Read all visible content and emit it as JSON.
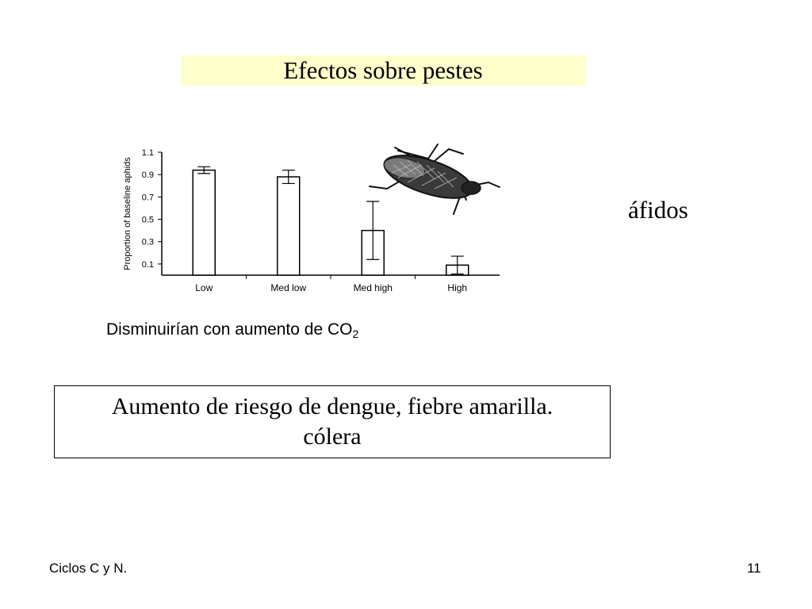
{
  "slide": {
    "title": "Efectos sobre pestes",
    "insect_label": "áfidos",
    "caption_main": "Disminuirían con aumento de CO",
    "caption_sub": "2",
    "risk_text_line1": "Aumento de riesgo de dengue, fiebre amarilla.",
    "risk_text_line2": "cólera",
    "footer_left": "Ciclos C y N.",
    "page_number": "11"
  },
  "colors": {
    "title_band": "#ffffcc",
    "bar_outline": "#000000",
    "axis": "#000000"
  },
  "icons": {
    "insect": "aphid-icon"
  },
  "chart_data": {
    "type": "bar",
    "categories": [
      "Low",
      "Med low",
      "Med high",
      "High"
    ],
    "values": [
      0.94,
      0.88,
      0.4,
      0.09
    ],
    "errors": [
      0.03,
      0.06,
      0.26,
      0.08
    ],
    "ylabel": "Proportion of baseline aphids",
    "xlabel": "",
    "yticks": [
      0.1,
      0.3,
      0.5,
      0.7,
      0.9,
      1.1
    ],
    "ytick_labels": [
      "0.1",
      "0.3",
      "0.5",
      "0.7",
      "0.9",
      "1.1"
    ],
    "ylim": [
      0,
      1.1
    ],
    "grid": false
  }
}
